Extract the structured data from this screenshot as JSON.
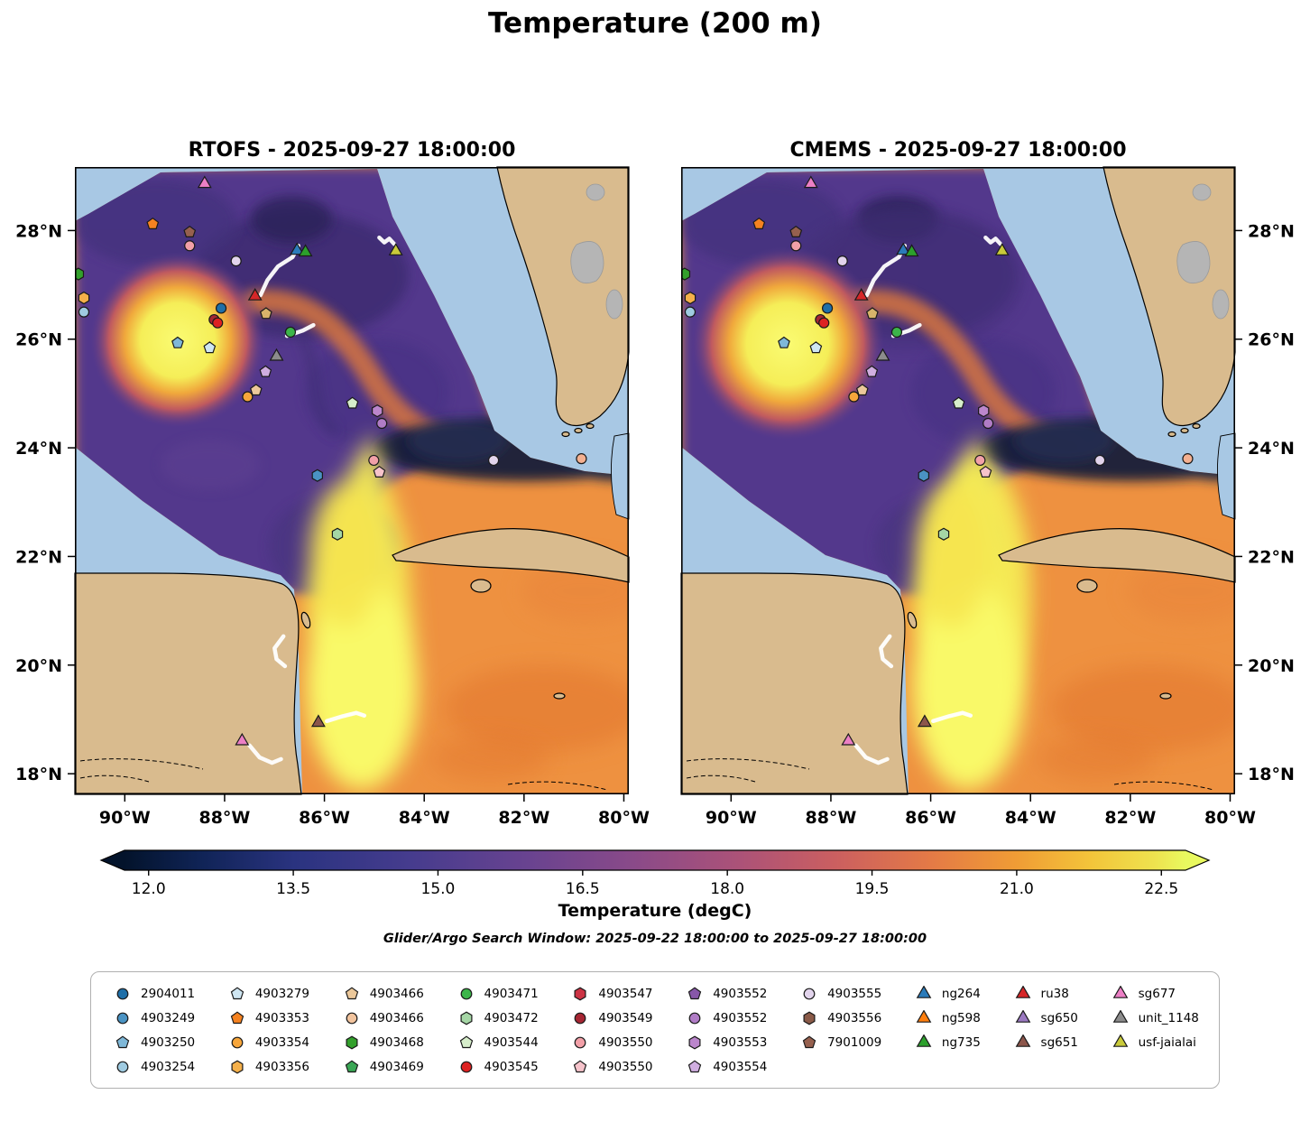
{
  "title": "Temperature (200 m)",
  "panels": [
    {
      "title": "RTOFS - 2025-09-27 18:00:00"
    },
    {
      "title": "CMEMS - 2025-09-27 18:00:00"
    }
  ],
  "subtitle": "Glider/Argo Search Window: 2025-09-22 18:00:00 to 2025-09-27 18:00:00",
  "axes": {
    "lat_values": [
      28,
      26,
      24,
      22,
      20,
      18
    ],
    "lat_labels": [
      "28°N",
      "26°N",
      "24°N",
      "22°N",
      "20°N",
      "18°N"
    ],
    "lon_values": [
      -90,
      -88,
      -86,
      -84,
      -82,
      -80
    ],
    "lon_labels": [
      "90°W",
      "88°W",
      "86°W",
      "84°W",
      "82°W",
      "80°W"
    ],
    "lon_range": [
      -91.0,
      -79.9
    ],
    "lat_range": [
      17.62,
      29.17
    ]
  },
  "colorbar": {
    "label": "Temperature (degC)",
    "vmin": 11.75,
    "vmax": 22.75,
    "tick_values": [
      12.0,
      13.5,
      15.0,
      16.5,
      18.0,
      19.5,
      21.0,
      22.5
    ],
    "tick_labels": [
      "12.0",
      "13.5",
      "15.0",
      "16.5",
      "18.0",
      "19.5",
      "21.0",
      "22.5"
    ],
    "stops": [
      [
        0,
        "#03132b"
      ],
      [
        0.07,
        "#0f2355"
      ],
      [
        0.16,
        "#2a3380"
      ],
      [
        0.27,
        "#463c8e"
      ],
      [
        0.38,
        "#694390"
      ],
      [
        0.48,
        "#8a4a89"
      ],
      [
        0.58,
        "#ac5278"
      ],
      [
        0.67,
        "#cb5f60"
      ],
      [
        0.76,
        "#e47a46"
      ],
      [
        0.84,
        "#f09c35"
      ],
      [
        0.91,
        "#f3c43a"
      ],
      [
        0.97,
        "#eee24e"
      ],
      [
        1,
        "#e9f95f"
      ]
    ]
  },
  "map_colors": {
    "shallow_ocean": "#a8c8e4",
    "land": "#d9bb8e",
    "gray_bank": "#b5b5b5",
    "track": "#ffffff"
  },
  "legend": {
    "columns": [
      [
        {
          "label": "2904011",
          "shape": "circle",
          "color": "#1f6fa8"
        },
        {
          "label": "4903249",
          "shape": "circle",
          "color": "#4a93c3"
        },
        {
          "label": "4903250",
          "shape": "pentagon",
          "color": "#7fb8d8"
        },
        {
          "label": "4903254",
          "shape": "circle",
          "color": "#9fcbe1"
        }
      ],
      [
        {
          "label": "4903279",
          "shape": "pentagon",
          "color": "#cfe6f2"
        },
        {
          "label": "4903353",
          "shape": "pentagon",
          "color": "#f58220"
        },
        {
          "label": "4903354",
          "shape": "circle",
          "color": "#f7a63b"
        },
        {
          "label": "4903356",
          "shape": "hexagon",
          "color": "#f5b04a"
        }
      ],
      [
        {
          "label": "4903466",
          "shape": "pentagon",
          "color": "#ecc89a"
        },
        {
          "label": "4903466",
          "shape": "circle",
          "color": "#f2c49e"
        },
        {
          "label": "4903468",
          "shape": "hexagon",
          "color": "#33a02c"
        },
        {
          "label": "4903469",
          "shape": "pentagon",
          "color": "#3aa655"
        }
      ],
      [
        {
          "label": "4903471",
          "shape": "circle",
          "color": "#3cb54a"
        },
        {
          "label": "4903472",
          "shape": "hexagon",
          "color": "#a5d6a5"
        },
        {
          "label": "4903544",
          "shape": "pentagon",
          "color": "#d7eecb"
        },
        {
          "label": "4903545",
          "shape": "circle",
          "color": "#dd2222"
        }
      ],
      [
        {
          "label": "4903547",
          "shape": "hexagon",
          "color": "#cc3344"
        },
        {
          "label": "4903549",
          "shape": "circle",
          "color": "#a62633"
        },
        {
          "label": "4903550",
          "shape": "circle",
          "color": "#f2a0a8"
        },
        {
          "label": "4903550",
          "shape": "pentagon",
          "color": "#f6c3cb"
        }
      ],
      [
        {
          "label": "4903552",
          "shape": "pentagon",
          "color": "#8757a8"
        },
        {
          "label": "4903552",
          "shape": "circle",
          "color": "#b07cc6"
        },
        {
          "label": "4903553",
          "shape": "hexagon",
          "color": "#bb86cc"
        },
        {
          "label": "4903554",
          "shape": "pentagon",
          "color": "#d0aee0"
        }
      ],
      [
        {
          "label": "4903555",
          "shape": "circle",
          "color": "#e2d4ec"
        },
        {
          "label": "4903556",
          "shape": "hexagon",
          "color": "#8a5a48"
        },
        {
          "label": "7901009",
          "shape": "pentagon",
          "color": "#96604e"
        }
      ],
      [
        {
          "label": "ng264",
          "shape": "triangle",
          "color": "#2b7bba"
        },
        {
          "label": "ng598",
          "shape": "triangle",
          "color": "#ff7f0e"
        },
        {
          "label": "ng735",
          "shape": "triangle",
          "color": "#2ca02c"
        }
      ],
      [
        {
          "label": "ru38",
          "shape": "triangle",
          "color": "#d62728"
        },
        {
          "label": "sg650",
          "shape": "triangle",
          "color": "#9b79c1"
        },
        {
          "label": "sg651",
          "shape": "triangle",
          "color": "#8c564b"
        }
      ],
      [
        {
          "label": "sg677",
          "shape": "triangle",
          "color": "#ec7fc5"
        },
        {
          "label": "unit_1148",
          "shape": "triangle",
          "color": "#8c8c8c"
        },
        {
          "label": "usf-jaialai",
          "shape": "triangle",
          "color": "#c9ca3a"
        }
      ]
    ]
  },
  "chart_data": {
    "type": "heatmap",
    "title": "Temperature (200 m)",
    "variable": "Temperature",
    "units": "degC",
    "depth": "200 m",
    "panels": [
      {
        "model": "RTOFS",
        "valid_time": "2025-09-27 18:00:00"
      },
      {
        "model": "CMEMS",
        "valid_time": "2025-09-27 18:00:00"
      }
    ],
    "search_window": "2025-09-22 18:00:00 to 2025-09-27 18:00:00",
    "colorbar_range_degC": [
      11.75,
      22.75
    ],
    "colorbar_ticks_degC": [
      12.0,
      13.5,
      15.0,
      16.5,
      18.0,
      19.5,
      21.0,
      22.5
    ],
    "lon_ticks": [
      "90°W",
      "88°W",
      "86°W",
      "84°W",
      "82°W",
      "80°W"
    ],
    "lat_ticks": [
      "28°N",
      "26°N",
      "24°N",
      "22°N",
      "20°N",
      "18°N"
    ],
    "features": [
      {
        "name": "warm-core-eddy",
        "lon": -88.9,
        "lat": 26.0,
        "approx_temp_degC": 22.5
      },
      {
        "name": "cold-nw-gulf-region",
        "lon": -88.0,
        "lat": 27.5,
        "approx_temp_degC": 15.0
      },
      {
        "name": "loop-current-warm-tongue",
        "lon": -85.5,
        "lat": 22.0,
        "approx_temp_degC": 22.0
      },
      {
        "name": "florida-straits-cold-band",
        "lon": -83.0,
        "lat": 24.2,
        "approx_temp_degC": 12.0
      },
      {
        "name": "caribbean-background",
        "lon": -82.0,
        "lat": 20.0,
        "approx_temp_degC": 19.0
      }
    ],
    "markers": [
      {
        "id": "sg677",
        "shape": "triangle",
        "color": "#ec7fc5",
        "lon": -88.4,
        "lat": 28.86
      },
      {
        "id": "4903353",
        "shape": "pentagon",
        "color": "#f58220",
        "lon": -89.44,
        "lat": 28.12
      },
      {
        "id": "7901009",
        "shape": "pentagon",
        "color": "#96604e",
        "lon": -88.7,
        "lat": 27.97
      },
      {
        "id": "4903550",
        "shape": "circle",
        "color": "#f2a0a8",
        "lon": -88.7,
        "lat": 27.72
      },
      {
        "id": "4903555",
        "shape": "circle",
        "color": "#e2d4ec",
        "lon": -87.77,
        "lat": 27.44
      },
      {
        "id": "ng264",
        "shape": "triangle",
        "color": "#2b7bba",
        "lon": -86.55,
        "lat": 27.63
      },
      {
        "id": "ng735",
        "shape": "triangle",
        "color": "#2ca02c",
        "lon": -86.38,
        "lat": 27.6
      },
      {
        "id": "usf-jaialai",
        "shape": "triangle",
        "color": "#c9ca3a",
        "lon": -84.57,
        "lat": 27.62
      },
      {
        "id": "4903468",
        "shape": "hexagon",
        "color": "#33a02c",
        "lon": -90.93,
        "lat": 27.2
      },
      {
        "id": "4903356",
        "shape": "hexagon",
        "color": "#f5b04a",
        "lon": -90.82,
        "lat": 26.76
      },
      {
        "id": "4903254",
        "shape": "circle",
        "color": "#9fcbe1",
        "lon": -90.82,
        "lat": 26.5
      },
      {
        "id": "ru38",
        "shape": "triangle",
        "color": "#d62728",
        "lon": -87.39,
        "lat": 26.79
      },
      {
        "id": "2904011",
        "shape": "circle",
        "color": "#1f6fa8",
        "lon": -88.07,
        "lat": 26.57
      },
      {
        "id": "4903549",
        "shape": "circle",
        "color": "#a62633",
        "lon": -88.21,
        "lat": 26.36
      },
      {
        "id": "4903545",
        "shape": "circle",
        "color": "#dd2222",
        "lon": -88.14,
        "lat": 26.3
      },
      {
        "id": "4903466",
        "shape": "pentagon",
        "color": "#d8b36a",
        "lon": -87.17,
        "lat": 26.47
      },
      {
        "id": "4903471",
        "shape": "circle",
        "color": "#3cb54a",
        "lon": -86.68,
        "lat": 26.13
      },
      {
        "id": "4903250",
        "shape": "pentagon",
        "color": "#7fb8d8",
        "lon": -88.94,
        "lat": 25.93
      },
      {
        "id": "4903279",
        "shape": "pentagon",
        "color": "#cfe6f2",
        "lon": -88.3,
        "lat": 25.84
      },
      {
        "id": "unit_1148",
        "shape": "triangle",
        "color": "#8c8c8c",
        "lon": -86.96,
        "lat": 25.68
      },
      {
        "id": "4903554",
        "shape": "pentagon",
        "color": "#d0aee0",
        "lon": -87.18,
        "lat": 25.4
      },
      {
        "id": "4903466",
        "shape": "pentagon",
        "color": "#ecc89a",
        "lon": -87.37,
        "lat": 25.06
      },
      {
        "id": "4903354",
        "shape": "circle",
        "color": "#f7a63b",
        "lon": -87.54,
        "lat": 24.94
      },
      {
        "id": "4903544",
        "shape": "pentagon",
        "color": "#d7eecb",
        "lon": -85.44,
        "lat": 24.82
      },
      {
        "id": "4903553",
        "shape": "hexagon",
        "color": "#bb86cc",
        "lon": -84.94,
        "lat": 24.68
      },
      {
        "id": "4903552",
        "shape": "circle",
        "color": "#b07cc6",
        "lon": -84.85,
        "lat": 24.45
      },
      {
        "id": "4903550",
        "shape": "circle",
        "color": "#f2a0a8",
        "lon": -85.01,
        "lat": 23.77
      },
      {
        "id": "4903550",
        "shape": "pentagon",
        "color": "#f6c3cb",
        "lon": -84.9,
        "lat": 23.55
      },
      {
        "id": "4903249",
        "shape": "hexagon",
        "color": "#4a93c3",
        "lon": -86.14,
        "lat": 23.49
      },
      {
        "id": "4903555",
        "shape": "circle",
        "color": "#e2d4ec",
        "lon": -82.61,
        "lat": 23.77
      },
      {
        "id": "4903550",
        "shape": "circle",
        "color": "#f4b090",
        "lon": -80.85,
        "lat": 23.8
      },
      {
        "id": "4903472",
        "shape": "hexagon",
        "color": "#a5d6a5",
        "lon": -85.74,
        "lat": 22.41
      },
      {
        "id": "sg651",
        "shape": "triangle",
        "color": "#8c564b",
        "lon": -86.12,
        "lat": 18.94
      },
      {
        "id": "sg677",
        "shape": "triangle",
        "color": "#ec7fc5",
        "lon": -87.65,
        "lat": 18.6
      }
    ],
    "tracks": [
      {
        "glider": "ru38",
        "points": [
          [
            -86.52,
            27.72
          ],
          [
            -86.64,
            27.51
          ],
          [
            -86.93,
            27.34
          ],
          [
            -87.14,
            27.09
          ],
          [
            -87.28,
            26.81
          ]
        ]
      },
      {
        "glider": "ng264",
        "points": [
          [
            -86.75,
            26.06
          ],
          [
            -86.43,
            26.16
          ],
          [
            -86.22,
            26.26
          ]
        ]
      },
      {
        "glider": "usf-jaialai",
        "points": [
          [
            -84.9,
            27.87
          ],
          [
            -84.8,
            27.78
          ],
          [
            -84.7,
            27.85
          ],
          [
            -84.6,
            27.75
          ]
        ]
      },
      {
        "glider": "sg650",
        "points": [
          [
            -86.82,
            20.53
          ],
          [
            -87.0,
            20.31
          ],
          [
            -86.96,
            20.11
          ],
          [
            -86.79,
            19.98
          ]
        ]
      },
      {
        "glider": "sg677",
        "points": [
          [
            -87.5,
            18.52
          ],
          [
            -87.3,
            18.3
          ],
          [
            -87.05,
            18.2
          ],
          [
            -86.87,
            18.27
          ]
        ]
      },
      {
        "glider": "sg651",
        "points": [
          [
            -85.95,
            18.97
          ],
          [
            -85.63,
            19.06
          ],
          [
            -85.36,
            19.12
          ],
          [
            -85.2,
            19.07
          ]
        ]
      }
    ]
  }
}
